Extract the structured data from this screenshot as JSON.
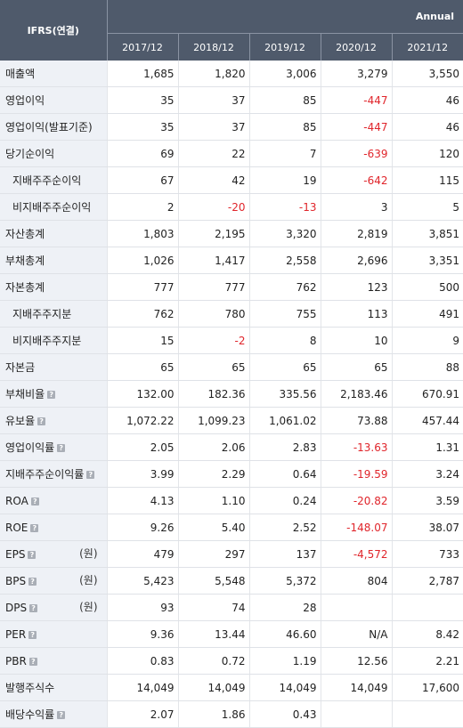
{
  "header": {
    "corner": "IFRS(연결)",
    "annual": "Annual",
    "years": [
      "2017/12",
      "2018/12",
      "2019/12",
      "2020/12",
      "2021/12"
    ]
  },
  "rows": [
    {
      "label": "매출액",
      "sub": false,
      "icon": false,
      "unit": "",
      "values": [
        "1,685",
        "1,820",
        "3,006",
        "3,279",
        "3,550"
      ]
    },
    {
      "label": "영업이익",
      "sub": false,
      "icon": false,
      "unit": "",
      "values": [
        "35",
        "37",
        "85",
        "-447",
        "46"
      ]
    },
    {
      "label": "영업이익(발표기준)",
      "sub": false,
      "icon": false,
      "unit": "",
      "values": [
        "35",
        "37",
        "85",
        "-447",
        "46"
      ]
    },
    {
      "label": "당기순이익",
      "sub": false,
      "icon": false,
      "unit": "",
      "values": [
        "69",
        "22",
        "7",
        "-639",
        "120"
      ]
    },
    {
      "label": "지배주주순이익",
      "sub": true,
      "icon": false,
      "unit": "",
      "values": [
        "67",
        "42",
        "19",
        "-642",
        "115"
      ]
    },
    {
      "label": "비지배주주순이익",
      "sub": true,
      "icon": false,
      "unit": "",
      "values": [
        "2",
        "-20",
        "-13",
        "3",
        "5"
      ]
    },
    {
      "label": "자산총계",
      "sub": false,
      "icon": false,
      "unit": "",
      "values": [
        "1,803",
        "2,195",
        "3,320",
        "2,819",
        "3,851"
      ]
    },
    {
      "label": "부채총계",
      "sub": false,
      "icon": false,
      "unit": "",
      "values": [
        "1,026",
        "1,417",
        "2,558",
        "2,696",
        "3,351"
      ]
    },
    {
      "label": "자본총계",
      "sub": false,
      "icon": false,
      "unit": "",
      "values": [
        "777",
        "777",
        "762",
        "123",
        "500"
      ]
    },
    {
      "label": "지배주주지분",
      "sub": true,
      "icon": false,
      "unit": "",
      "values": [
        "762",
        "780",
        "755",
        "113",
        "491"
      ]
    },
    {
      "label": "비지배주주지분",
      "sub": true,
      "icon": false,
      "unit": "",
      "values": [
        "15",
        "-2",
        "8",
        "10",
        "9"
      ]
    },
    {
      "label": "자본금",
      "sub": false,
      "icon": false,
      "unit": "",
      "values": [
        "65",
        "65",
        "65",
        "65",
        "88"
      ]
    },
    {
      "label": "부채비율",
      "sub": false,
      "icon": true,
      "unit": "",
      "values": [
        "132.00",
        "182.36",
        "335.56",
        "2,183.46",
        "670.91"
      ]
    },
    {
      "label": "유보율",
      "sub": false,
      "icon": true,
      "unit": "",
      "values": [
        "1,072.22",
        "1,099.23",
        "1,061.02",
        "73.88",
        "457.44"
      ]
    },
    {
      "label": "영업이익률",
      "sub": false,
      "icon": true,
      "unit": "",
      "values": [
        "2.05",
        "2.06",
        "2.83",
        "-13.63",
        "1.31"
      ]
    },
    {
      "label": "지배주주순이익률",
      "sub": false,
      "icon": true,
      "unit": "",
      "values": [
        "3.99",
        "2.29",
        "0.64",
        "-19.59",
        "3.24"
      ]
    },
    {
      "label": "ROA",
      "sub": false,
      "icon": true,
      "unit": "",
      "values": [
        "4.13",
        "1.10",
        "0.24",
        "-20.82",
        "3.59"
      ]
    },
    {
      "label": "ROE",
      "sub": false,
      "icon": true,
      "unit": "",
      "values": [
        "9.26",
        "5.40",
        "2.52",
        "-148.07",
        "38.07"
      ]
    },
    {
      "label": "EPS",
      "sub": false,
      "icon": true,
      "unit": "(원)",
      "values": [
        "479",
        "297",
        "137",
        "-4,572",
        "733"
      ]
    },
    {
      "label": "BPS",
      "sub": false,
      "icon": true,
      "unit": "(원)",
      "values": [
        "5,423",
        "5,548",
        "5,372",
        "804",
        "2,787"
      ]
    },
    {
      "label": "DPS",
      "sub": false,
      "icon": true,
      "unit": "(원)",
      "values": [
        "93",
        "74",
        "28",
        "",
        ""
      ]
    },
    {
      "label": "PER",
      "sub": false,
      "icon": true,
      "unit": "",
      "values": [
        "9.36",
        "13.44",
        "46.60",
        "N/A",
        "8.42"
      ]
    },
    {
      "label": "PBR",
      "sub": false,
      "icon": true,
      "unit": "",
      "values": [
        "0.83",
        "0.72",
        "1.19",
        "12.56",
        "2.21"
      ]
    },
    {
      "label": "발행주식수",
      "sub": false,
      "icon": false,
      "unit": "",
      "values": [
        "14,049",
        "14,049",
        "14,049",
        "14,049",
        "17,600"
      ]
    },
    {
      "label": "배당수익률",
      "sub": false,
      "icon": true,
      "unit": "",
      "values": [
        "2.07",
        "1.86",
        "0.43",
        "",
        ""
      ]
    }
  ],
  "icon_glyph": "?"
}
